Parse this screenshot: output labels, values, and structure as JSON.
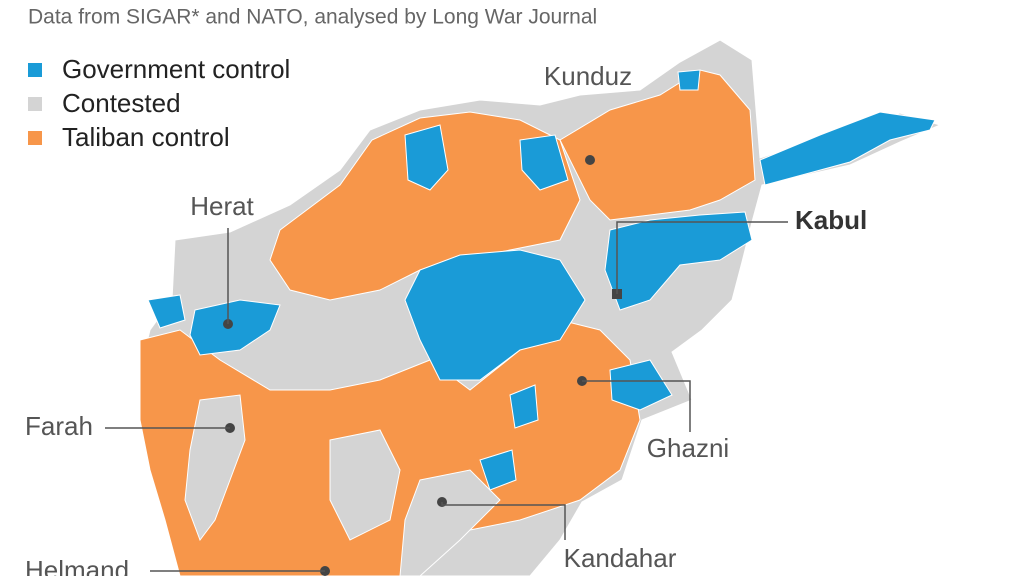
{
  "subtitle": "Data from SIGAR* and NATO, analysed by Long War Journal",
  "legend": [
    {
      "label": "Government control",
      "color": "#1a9bd7"
    },
    {
      "label": "Contested",
      "color": "#d4d4d4"
    },
    {
      "label": "Taliban control",
      "color": "#f7964a"
    }
  ],
  "cities": [
    {
      "label": "Kunduz"
    },
    {
      "label": "Kabul"
    },
    {
      "label": "Herat"
    },
    {
      "label": "Farah"
    },
    {
      "label": "Ghazni"
    },
    {
      "label": "Kandahar"
    },
    {
      "label": "Helmand"
    }
  ]
}
